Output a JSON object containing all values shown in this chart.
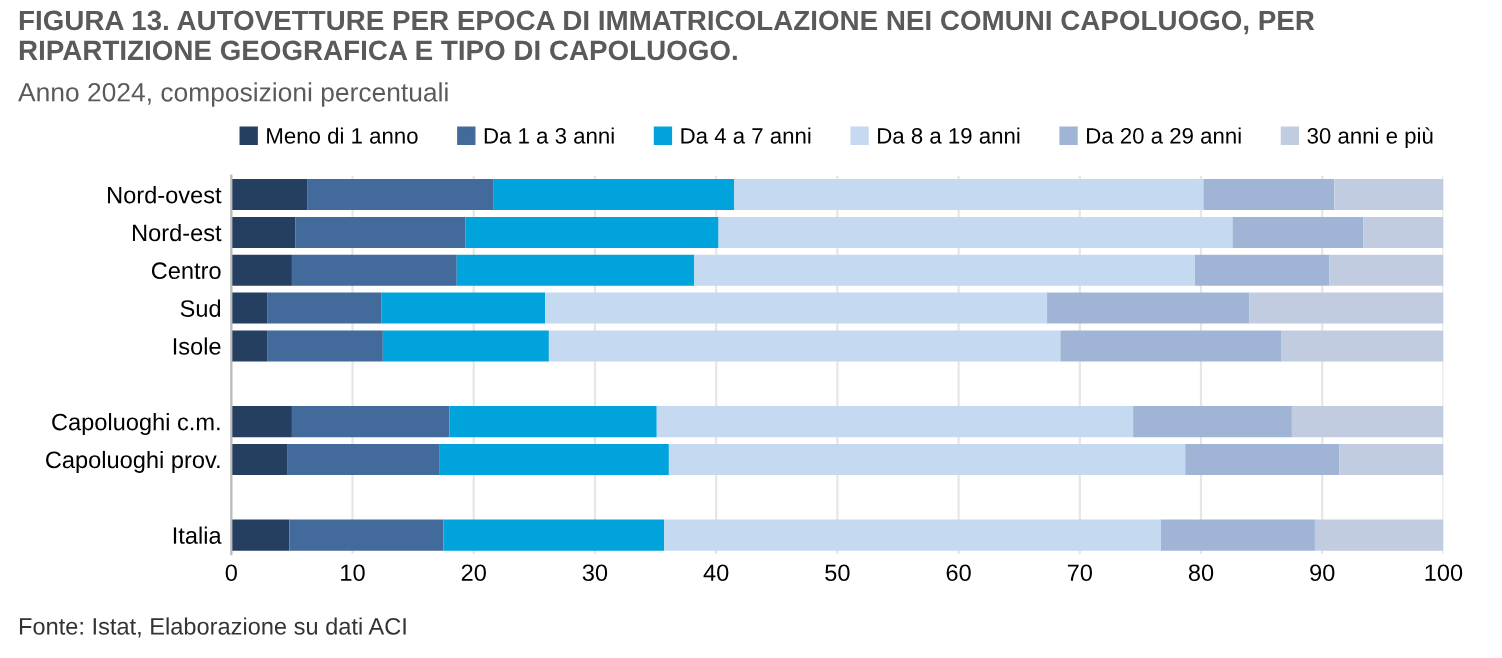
{
  "chart_data": {
    "type": "bar",
    "orientation": "horizontal",
    "stacked": true,
    "title": "FIGURA 13. AUTOVETTURE PER EPOCA DI IMMATRICOLAZIONE NEI COMUNI CAPOLUOGO, PER RIPARTIZIONE GEOGRAFICA E TIPO DI CAPOLUOGO.",
    "subtitle": "Anno 2024, composizioni percentuali",
    "categories": [
      "Nord-ovest",
      "Nord-est",
      "Centro",
      "Sud",
      "Isole",
      null,
      "Capoluoghi c.m.",
      "Capoluoghi prov.",
      null,
      "Italia"
    ],
    "series": [
      {
        "name": "Meno di 1 anno",
        "color": "#243f60",
        "values": [
          6.3,
          5.3,
          5.0,
          3.0,
          3.0,
          null,
          5.0,
          4.6,
          null,
          4.8
        ]
      },
      {
        "name": "Da 1 a 3 anni",
        "color": "#426a9a",
        "values": [
          15.3,
          14.0,
          13.6,
          9.4,
          9.5,
          null,
          13.0,
          12.6,
          null,
          12.7
        ]
      },
      {
        "name": "Da 4 a 7 anni",
        "color": "#00a3dc",
        "values": [
          19.9,
          20.9,
          19.6,
          13.5,
          13.7,
          null,
          17.1,
          18.9,
          null,
          18.2
        ]
      },
      {
        "name": "Da 8 a 19 anni",
        "color": "#c5d9f1",
        "values": [
          38.7,
          42.4,
          41.3,
          41.4,
          42.2,
          null,
          39.3,
          42.6,
          null,
          41.0
        ]
      },
      {
        "name": "Da 20 a 29 anni",
        "color": "#a0b5d5",
        "values": [
          10.8,
          10.8,
          11.1,
          16.7,
          18.2,
          null,
          13.1,
          12.7,
          null,
          12.7
        ]
      },
      {
        "name": "30 anni e più",
        "color": "#c2cce0",
        "values": [
          9.0,
          6.6,
          9.4,
          16.0,
          13.4,
          null,
          12.5,
          8.6,
          null,
          10.6
        ]
      }
    ],
    "xlim": [
      0,
      100
    ],
    "xticks": [
      0,
      10,
      20,
      30,
      40,
      50,
      60,
      70,
      80,
      90,
      100
    ],
    "grid": "x",
    "legend": "top",
    "annotations": [
      "Fonte: Istat, Elaborazione su dati ACI"
    ]
  }
}
